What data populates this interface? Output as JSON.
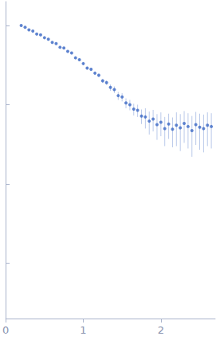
{
  "chart_data": {
    "type": "scatter",
    "color": "#3b68c4",
    "marker": "circle",
    "x": [
      0.2,
      0.25,
      0.3,
      0.35,
      0.4,
      0.45,
      0.5,
      0.55,
      0.6,
      0.65,
      0.7,
      0.75,
      0.8,
      0.85,
      0.9,
      0.95,
      1.0,
      1.05,
      1.1,
      1.15,
      1.2,
      1.25,
      1.3,
      1.35,
      1.4,
      1.45,
      1.5,
      1.55,
      1.6,
      1.65,
      1.7,
      1.75,
      1.8,
      1.85,
      1.9,
      1.95,
      2.0,
      2.05,
      2.1,
      2.15,
      2.2,
      2.25,
      2.3,
      2.35,
      2.4,
      2.45,
      2.5,
      2.55,
      2.6,
      2.65
    ],
    "values": [
      1.0,
      0.95,
      0.88,
      0.85,
      0.78,
      0.76,
      0.7,
      0.67,
      0.61,
      0.59,
      0.53,
      0.52,
      0.47,
      0.45,
      0.39,
      0.37,
      0.33,
      0.29,
      0.28,
      0.25,
      0.235,
      0.2,
      0.19,
      0.165,
      0.155,
      0.13,
      0.125,
      0.105,
      0.1,
      0.088,
      0.085,
      0.072,
      0.07,
      0.062,
      0.066,
      0.056,
      0.06,
      0.05,
      0.057,
      0.049,
      0.055,
      0.051,
      0.058,
      0.053,
      0.047,
      0.056,
      0.052,
      0.05,
      0.055,
      0.053
    ],
    "errors": [
      0.01,
      0.01,
      0.01,
      0.01,
      0.01,
      0.01,
      0.01,
      0.01,
      0.01,
      0.01,
      0.01,
      0.01,
      0.01,
      0.01,
      0.01,
      0.01,
      0.012,
      0.012,
      0.012,
      0.012,
      0.012,
      0.012,
      0.012,
      0.015,
      0.015,
      0.015,
      0.015,
      0.015,
      0.015,
      0.015,
      0.015,
      0.015,
      0.02,
      0.02,
      0.02,
      0.02,
      0.02,
      0.02,
      0.02,
      0.02,
      0.025,
      0.025,
      0.025,
      0.025,
      0.025,
      0.025,
      0.025,
      0.025,
      0.025,
      0.025
    ],
    "xlim": [
      0,
      2.7
    ],
    "xticks": [
      0,
      1,
      2
    ],
    "ylim": [
      0.0002,
      2
    ],
    "yticks": [
      0.001,
      0.01,
      0.1,
      1
    ],
    "log": "y",
    "grid": false,
    "tick_labels": "x"
  }
}
